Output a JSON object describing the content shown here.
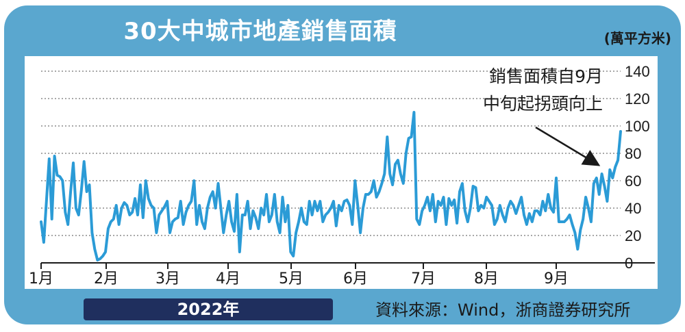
{
  "chart_data": {
    "type": "line",
    "title": "30大中城市地產銷售面積",
    "unit": "(萬平方米)",
    "year_label": "2022年",
    "source": "資料來源：Wind，浙商證券研究所",
    "annotation": [
      "銷售面積自9月",
      "中旬起拐頭向上"
    ],
    "x_tick_labels": [
      "1月",
      "2月",
      "3月",
      "4月",
      "5月",
      "6月",
      "7月",
      "8月",
      "9月"
    ],
    "y_tick_labels": [
      "0",
      "20",
      "40",
      "60",
      "80",
      "100",
      "120",
      "140"
    ],
    "ylim": [
      0,
      140
    ],
    "grid": true,
    "series": [
      {
        "color": "#2b9bd6",
        "values": [
          30,
          15,
          45,
          76,
          32,
          78,
          64,
          63,
          60,
          37,
          28,
          52,
          73,
          40,
          35,
          53,
          74,
          52,
          57,
          22,
          10,
          2,
          3,
          5,
          8,
          25,
          30,
          32,
          42,
          28,
          40,
          44,
          42,
          35,
          37,
          47,
          35,
          57,
          33,
          60,
          47,
          42,
          40,
          22,
          35,
          38,
          41,
          45,
          22,
          30,
          32,
          33,
          45,
          28,
          37,
          42,
          45,
          60,
          28,
          42,
          30,
          25,
          40,
          48,
          52,
          40,
          58,
          40,
          22,
          35,
          45,
          30,
          23,
          50,
          8,
          35,
          35,
          45,
          25,
          38,
          33,
          25,
          40,
          35,
          50,
          30,
          35,
          50,
          30,
          22,
          48,
          30,
          42,
          8,
          5,
          22,
          30,
          40,
          30,
          28,
          45,
          35,
          45,
          38,
          45,
          30,
          35,
          37,
          40,
          45,
          27,
          42,
          38,
          45,
          46,
          42,
          28,
          60,
          42,
          22,
          40,
          50,
          50,
          52,
          60,
          48,
          52,
          58,
          65,
          92,
          65,
          57,
          72,
          75,
          65,
          58,
          80,
          91,
          92,
          110,
          32,
          28,
          38,
          42,
          48,
          38,
          50,
          30,
          45,
          42,
          48,
          28,
          47,
          42,
          46,
          29,
          52,
          58,
          38,
          30,
          40,
          56,
          55,
          38,
          42,
          40,
          48,
          45,
          42,
          28,
          32,
          42,
          35,
          30,
          40,
          45,
          42,
          36,
          42,
          48,
          35,
          28,
          36,
          30,
          38,
          38,
          35,
          45,
          38,
          50,
          40,
          37,
          62,
          30,
          30,
          30,
          32,
          35,
          28,
          22,
          10,
          24,
          32,
          48,
          40,
          30,
          58,
          62,
          50,
          65,
          56,
          45,
          68,
          62,
          70,
          75,
          96
        ]
      }
    ]
  }
}
